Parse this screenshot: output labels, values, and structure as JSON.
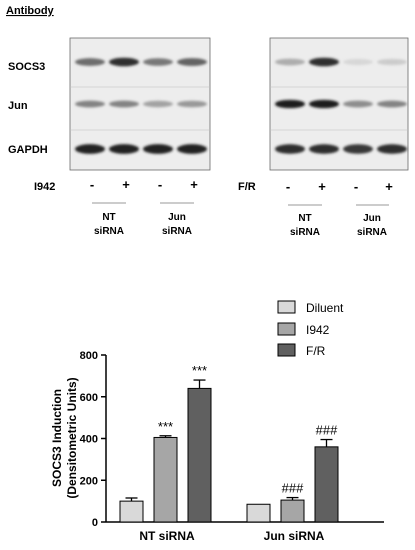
{
  "blot": {
    "header": "Antibody",
    "row_labels": [
      "SOCS3",
      "Jun",
      "GAPDH"
    ],
    "left_panel": {
      "treatment_label": "I942",
      "signs": [
        "-",
        "+",
        "-",
        "+"
      ],
      "groups": [
        {
          "line1": "NT",
          "line2": "siRNA"
        },
        {
          "line1": "Jun",
          "line2": "siRNA"
        }
      ]
    },
    "right_panel": {
      "treatment_label": "F/R",
      "signs": [
        "-",
        "+",
        "-",
        "+"
      ],
      "groups": [
        {
          "line1": "NT",
          "line2": "siRNA"
        },
        {
          "line1": "Jun",
          "line2": "siRNA"
        }
      ]
    },
    "band_intensity": {
      "left": {
        "SOCS3": [
          0.55,
          0.85,
          0.5,
          0.6
        ],
        "Jun": [
          0.45,
          0.45,
          0.3,
          0.35
        ],
        "GAPDH": [
          0.9,
          0.9,
          0.9,
          0.9
        ]
      },
      "right": {
        "SOCS3": [
          0.25,
          0.85,
          0.05,
          0.1
        ],
        "Jun": [
          0.95,
          0.95,
          0.4,
          0.45
        ],
        "GAPDH": [
          0.85,
          0.85,
          0.8,
          0.85
        ]
      }
    }
  },
  "chart_data": {
    "type": "bar",
    "categories": [
      "NT siRNA",
      "Jun siRNA"
    ],
    "series": [
      {
        "name": "Diluent",
        "color": "#d9d9d9",
        "values": [
          100,
          85
        ],
        "errors": [
          15,
          0
        ],
        "marks": [
          "",
          ""
        ]
      },
      {
        "name": "I942",
        "color": "#a6a6a6",
        "values": [
          405,
          105
        ],
        "errors": [
          8,
          12
        ],
        "marks": [
          "***",
          "###"
        ]
      },
      {
        "name": "F/R",
        "color": "#606060",
        "values": [
          640,
          360
        ],
        "errors": [
          40,
          35
        ],
        "marks": [
          "***",
          "###"
        ]
      }
    ],
    "ylabel_line1": "SOCS3 Induction",
    "ylabel_line2": "(Densitometric Units)",
    "ylim": [
      0,
      800
    ],
    "yticks": [
      0,
      200,
      400,
      600,
      800
    ],
    "legend_position": "top-right"
  }
}
